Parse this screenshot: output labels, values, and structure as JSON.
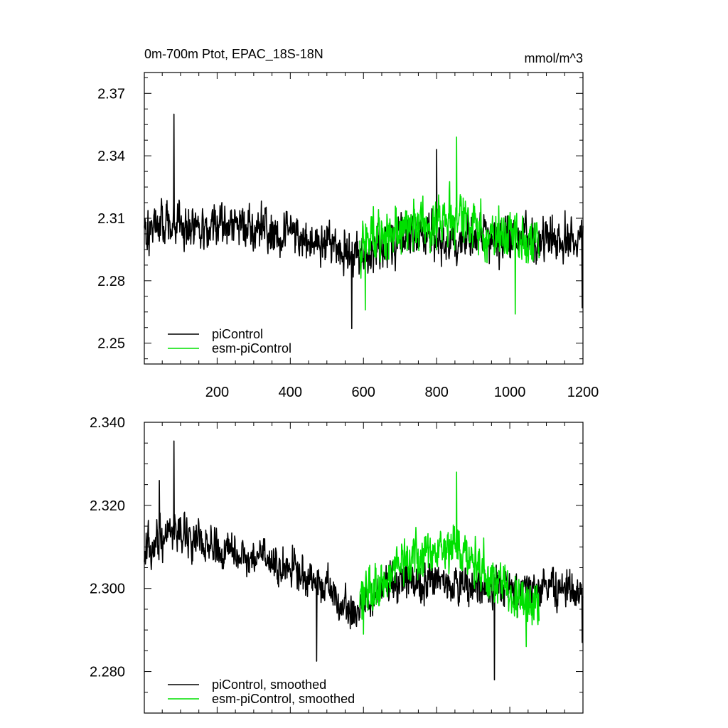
{
  "chart_data": [
    {
      "type": "line",
      "title_left": "0m-700m Ptot, EPAC_18S-18N",
      "title_right": "mmol/m^3",
      "xlabel": "",
      "ylabel": "",
      "xlim": [
        1,
        1200
      ],
      "ylim": [
        2.24,
        2.38
      ],
      "x_ticks": [
        200,
        400,
        600,
        800,
        1000,
        1200
      ],
      "x_tick_labels": [
        "200",
        "400",
        "600",
        "800",
        "1000",
        "1200"
      ],
      "y_ticks": [
        2.25,
        2.28,
        2.31,
        2.34,
        2.37
      ],
      "y_tick_labels": [
        "2.25",
        "2.28",
        "2.31",
        "2.34",
        "2.37"
      ],
      "legend_position": "bottom-left",
      "series": [
        {
          "name": "piControl",
          "color": "#000000",
          "x_start": 1,
          "x_end": 1200,
          "n": 1200,
          "trend": [
            [
              1,
              2.306
            ],
            [
              120,
              2.308
            ],
            [
              300,
              2.305
            ],
            [
              480,
              2.299
            ],
            [
              570,
              2.291
            ],
            [
              700,
              2.3
            ],
            [
              850,
              2.301
            ],
            [
              1000,
              2.3
            ],
            [
              1200,
              2.3
            ]
          ],
          "noise_amp": 0.0085,
          "extremes": [
            [
              82,
              2.36
            ],
            [
              568,
              2.257
            ],
            [
              1198,
              2.267
            ],
            [
              800,
              2.343
            ]
          ]
        },
        {
          "name": "esm-piControl",
          "color": "#00e000",
          "x_start": 590,
          "x_end": 1080,
          "n": 490,
          "trend": [
            [
              590,
              2.297
            ],
            [
              680,
              2.305
            ],
            [
              800,
              2.31
            ],
            [
              870,
              2.309
            ],
            [
              960,
              2.301
            ],
            [
              1080,
              2.298
            ]
          ],
          "noise_amp": 0.0095,
          "extremes": [
            [
              855,
              2.349
            ],
            [
              605,
              2.266
            ],
            [
              1015,
              2.264
            ]
          ]
        }
      ]
    },
    {
      "type": "line",
      "title_left": "",
      "title_right": "",
      "xlabel": "",
      "ylabel": "",
      "xlim": [
        1,
        1200
      ],
      "ylim": [
        2.27,
        2.34
      ],
      "x_ticks": [
        200,
        400,
        600,
        800,
        1000,
        1200
      ],
      "x_tick_labels": [],
      "y_ticks": [
        2.28,
        2.3,
        2.32,
        2.34
      ],
      "y_tick_labels": [
        "2.280",
        "2.300",
        "2.320",
        "2.340"
      ],
      "legend_position": "bottom-left",
      "series": [
        {
          "name": "piControl, smoothed",
          "color": "#000000",
          "x_start": 1,
          "x_end": 1200,
          "n": 1200,
          "trend": [
            [
              1,
              2.311
            ],
            [
              100,
              2.313
            ],
            [
              250,
              2.308
            ],
            [
              400,
              2.305
            ],
            [
              500,
              2.3
            ],
            [
              570,
              2.293
            ],
            [
              650,
              2.3
            ],
            [
              800,
              2.302
            ],
            [
              950,
              2.3
            ],
            [
              1200,
              2.3
            ]
          ],
          "noise_amp": 0.0035,
          "extremes": [
            [
              82,
              2.3355
            ],
            [
              42,
              2.326
            ],
            [
              472,
              2.2825
            ],
            [
              958,
              2.278
            ],
            [
              1198,
              2.287
            ]
          ]
        },
        {
          "name": "esm-piControl, smoothed",
          "color": "#00e000",
          "x_start": 590,
          "x_end": 1080,
          "n": 490,
          "trend": [
            [
              590,
              2.297
            ],
            [
              700,
              2.305
            ],
            [
              800,
              2.31
            ],
            [
              870,
              2.31
            ],
            [
              960,
              2.301
            ],
            [
              1080,
              2.296
            ]
          ],
          "noise_amp": 0.0045,
          "extremes": [
            [
              855,
              2.328
            ],
            [
              600,
              2.289
            ],
            [
              1045,
              2.286
            ]
          ]
        }
      ]
    }
  ]
}
